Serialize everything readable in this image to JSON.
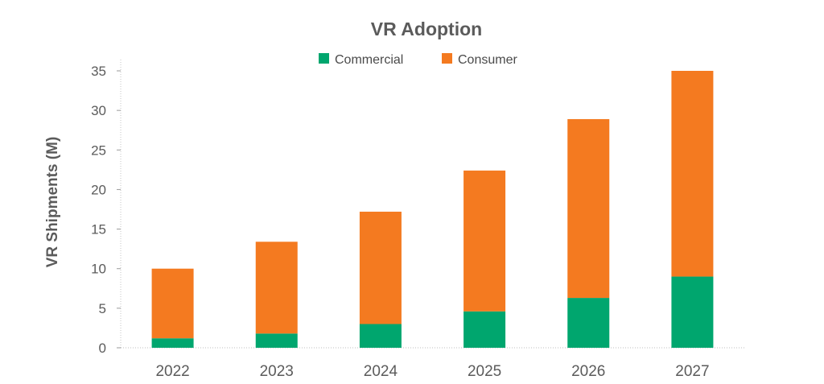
{
  "chart_data": {
    "type": "bar",
    "stacked": true,
    "title": "VR Adoption",
    "ylabel": "VR Shipments (M)",
    "xlabel": "",
    "categories": [
      "2022",
      "2023",
      "2024",
      "2025",
      "2026",
      "2027"
    ],
    "series": [
      {
        "name": "Commercial",
        "color": "#00a66e",
        "values": [
          1.2,
          1.8,
          3.0,
          4.6,
          6.3,
          9.0
        ]
      },
      {
        "name": "Consumer",
        "color": "#f47a20",
        "values": [
          8.8,
          11.6,
          14.2,
          17.8,
          22.6,
          26.0
        ]
      }
    ],
    "ylim": [
      0,
      35
    ],
    "yticks": [
      "0",
      "5",
      "10",
      "15",
      "20",
      "25",
      "30",
      "35"
    ],
    "legend_position": "top-center",
    "grid": false
  }
}
